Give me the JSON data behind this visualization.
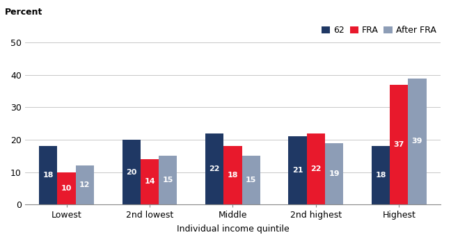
{
  "categories": [
    "Lowest",
    "2nd lowest",
    "Middle",
    "2nd highest",
    "Highest"
  ],
  "series": {
    "62": [
      18,
      20,
      22,
      21,
      18
    ],
    "FRA": [
      10,
      14,
      18,
      22,
      37
    ],
    "After FRA": [
      12,
      15,
      15,
      19,
      39
    ]
  },
  "colors": {
    "62": "#1f3864",
    "FRA": "#e8192c",
    "After FRA": "#8d9db6"
  },
  "legend_labels": [
    "62",
    "FRA",
    "After FRA"
  ],
  "percent_label": "Percent",
  "xlabel": "Individual income quintile",
  "ylim": [
    0,
    50
  ],
  "yticks": [
    0,
    10,
    20,
    30,
    40,
    50
  ],
  "bar_width": 0.22,
  "label_fontsize": 8,
  "axis_fontsize": 9,
  "legend_fontsize": 9,
  "background_color": "#ffffff",
  "grid_color": "#c8c8c8",
  "text_color_on_bar": "#ffffff"
}
